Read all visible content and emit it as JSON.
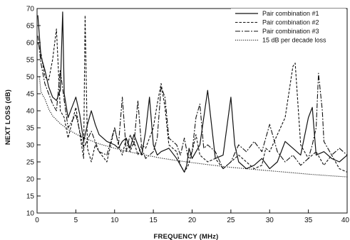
{
  "chart_data": {
    "type": "line",
    "title": "",
    "xlabel": "FREQUENCY (MHz)",
    "ylabel": "NEXT LOSS (dB)",
    "xlim": [
      0,
      40
    ],
    "ylim": [
      10,
      70
    ],
    "xticks": [
      0,
      5,
      10,
      15,
      20,
      25,
      30,
      35,
      40
    ],
    "yticks": [
      10,
      15,
      20,
      25,
      30,
      35,
      40,
      45,
      50,
      55,
      60,
      65,
      70
    ],
    "grid": false,
    "legend_position": "top-right",
    "series": [
      {
        "name": "Pair combination #1",
        "style": "solid",
        "x": [
          0.1,
          0.5,
          1,
          1.5,
          2,
          2.5,
          3,
          3.3,
          3.5,
          4,
          4.5,
          5,
          5.5,
          6,
          6.5,
          7,
          7.5,
          8,
          9,
          10,
          10.5,
          11,
          11.5,
          12,
          12.5,
          13,
          13.5,
          14,
          14.5,
          15,
          15.5,
          16,
          17,
          18,
          19,
          19.3,
          19.6,
          20,
          21,
          22,
          23,
          24,
          25,
          25.5,
          26,
          27,
          28,
          29,
          30,
          31,
          32,
          33,
          34,
          35,
          35.5,
          36,
          37,
          38,
          39,
          40
        ],
        "values": [
          68,
          56,
          52,
          47,
          44,
          43,
          46,
          69,
          45,
          38,
          41,
          44,
          39,
          31,
          36,
          40,
          36,
          33,
          31,
          30,
          29,
          31,
          32,
          29,
          33,
          30,
          27,
          34,
          44,
          30,
          27,
          28,
          29,
          26,
          22,
          24,
          29,
          26,
          30,
          46,
          26,
          27,
          44,
          30,
          25,
          23,
          24,
          26,
          23,
          25,
          31,
          29,
          27,
          38,
          41,
          27,
          28,
          26,
          25,
          27
        ]
      },
      {
        "name": "Pair combination #2",
        "style": "dashed",
        "x": [
          0.1,
          0.5,
          1,
          1.5,
          2,
          2.5,
          3,
          3.5,
          4,
          5,
          6,
          6.2,
          6.5,
          7,
          7.5,
          8,
          9,
          10,
          10.5,
          11,
          11.5,
          12,
          12.5,
          13,
          13.5,
          14,
          15,
          15.5,
          16,
          16.5,
          17,
          18,
          18.5,
          19,
          19.5,
          20,
          20.5,
          21,
          22,
          23,
          24,
          25,
          26,
          27,
          28,
          29,
          29.5,
          30,
          31,
          32,
          33,
          33.3,
          34,
          35,
          36,
          37,
          38,
          39,
          40
        ],
        "values": [
          60,
          57,
          50,
          49,
          55,
          64,
          40,
          38,
          32,
          41,
          26,
          68,
          29,
          25,
          30,
          28,
          25,
          35,
          30,
          27,
          32,
          28,
          31,
          27,
          30,
          29,
          35,
          42,
          48,
          41,
          30,
          28,
          24,
          22,
          24,
          28,
          33,
          27,
          25,
          26,
          23,
          25,
          27,
          25,
          23,
          24,
          29,
          28,
          33,
          38,
          53,
          54,
          30,
          26,
          28,
          24,
          27,
          23,
          22
        ]
      },
      {
        "name": "Pair combination #3",
        "style": "dashdot",
        "x": [
          0.1,
          0.5,
          1,
          1.5,
          2,
          2.5,
          3,
          3.5,
          4,
          5,
          6,
          7,
          8,
          9,
          10,
          10.5,
          11,
          11.5,
          12,
          12.5,
          13,
          13.5,
          14,
          15,
          15.5,
          16,
          16.5,
          17,
          18,
          18.5,
          19,
          19.5,
          20,
          20.5,
          21,
          21.5,
          22,
          23,
          24,
          25,
          26,
          27,
          28,
          29,
          30,
          31,
          32,
          33,
          34,
          35,
          35.5,
          36,
          36.3,
          36.8,
          37,
          38,
          39,
          40
        ],
        "values": [
          62,
          54,
          48,
          45,
          42,
          40,
          52,
          43,
          35,
          39,
          29,
          34,
          28,
          27,
          35,
          30,
          44,
          28,
          33,
          30,
          43,
          29,
          26,
          28,
          32,
          47,
          44,
          32,
          30,
          27,
          32,
          26,
          28,
          38,
          42,
          29,
          30,
          28,
          23,
          25,
          30,
          28,
          31,
          28,
          36,
          28,
          25,
          27,
          24,
          26,
          30,
          35,
          51,
          40,
          31,
          27,
          29,
          27
        ]
      },
      {
        "name": "15 dB per decade loss",
        "style": "dotted",
        "formula": "x^-1.5 scale",
        "x": [
          0.3,
          0.5,
          1,
          1.5,
          2,
          3,
          4,
          5,
          6,
          7,
          8,
          10,
          12,
          14,
          16,
          18,
          20,
          22,
          25,
          28,
          30,
          32,
          35,
          38,
          40
        ],
        "values": [
          50,
          45.5,
          43.5,
          40.5,
          38.5,
          36.2,
          34.5,
          33.2,
          32,
          31.2,
          30.3,
          29,
          27.9,
          27,
          26.1,
          25.4,
          24.8,
          24.2,
          23.4,
          22.8,
          22.4,
          22,
          21.4,
          20.9,
          20.6
        ]
      }
    ]
  }
}
